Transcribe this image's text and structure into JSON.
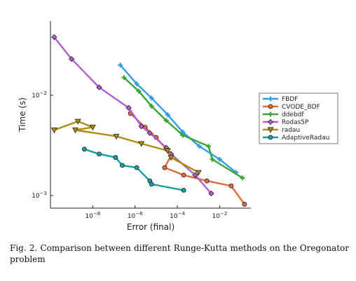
{
  "caption": "Fig. 2.  Comparison between different Runge-Kutta methods on the Oregonator problem",
  "chart_data": {
    "type": "line",
    "title": "",
    "xlabel": "Error (final)",
    "ylabel": "Time (s)",
    "xscale": "log",
    "yscale": "log",
    "xlim": [
      1e-10,
      0.3
    ],
    "ylim": [
      0.00075,
      0.055
    ],
    "xticks": [
      {
        "value": 1e-08,
        "label": "10^-8"
      },
      {
        "value": 1e-06,
        "label": "10^-6"
      },
      {
        "value": 0.0001,
        "label": "10^-4"
      },
      {
        "value": 0.01,
        "label": "10^-2"
      }
    ],
    "yticks": [
      {
        "value": 0.001,
        "label": "10^-3"
      },
      {
        "value": 0.01,
        "label": "10^-2"
      }
    ],
    "grid": false,
    "legend_position": "right",
    "series": [
      {
        "name": "FBDF",
        "color": "#2f9fe8",
        "marker": "cross",
        "x": [
          2e-07,
          1.2e-06,
          6e-06,
          3.5e-05,
          0.00018,
          0.0011,
          0.01,
          0.06
        ],
        "y": [
          0.02,
          0.013,
          0.0094,
          0.0064,
          0.0043,
          0.0031,
          0.0023,
          0.0017
        ]
      },
      {
        "name": "CVODE_BDF",
        "color": "#e06b3a",
        "marker": "circle",
        "x": [
          6e-07,
          3e-06,
          1e-05,
          3e-05,
          5e-05,
          2.5e-05,
          0.0002,
          0.0025,
          0.035,
          0.15
        ],
        "y": [
          0.0066,
          0.0048,
          0.0038,
          0.0029,
          0.0025,
          0.0019,
          0.0016,
          0.0014,
          0.00125,
          0.00082
        ]
      },
      {
        "name": "ddebdf",
        "color": "#3aa43a",
        "marker": "cross",
        "x": [
          3e-07,
          1.5e-06,
          6e-06,
          3e-05,
          0.00018,
          0.003,
          0.0045,
          0.12
        ],
        "y": [
          0.015,
          0.011,
          0.0078,
          0.0056,
          0.004,
          0.0031,
          0.0023,
          0.0015
        ]
      },
      {
        "name": "Rodas5P",
        "color": "#b05fcf",
        "marker": "diamond",
        "x": [
          1.5e-10,
          1e-09,
          2e-08,
          5e-07,
          2e-06,
          5e-06,
          3e-05,
          5e-05,
          0.0007,
          0.004
        ],
        "y": [
          0.038,
          0.023,
          0.012,
          0.0075,
          0.0049,
          0.0042,
          0.003,
          0.0026,
          0.0016,
          0.00105
        ]
      },
      {
        "name": "radau",
        "color": "#b08b10",
        "marker": "triangle-down",
        "x": [
          1.5e-10,
          2e-09,
          1e-08,
          1.5e-09,
          1.3e-07,
          2e-06,
          3.5e-05,
          5e-05,
          0.001
        ],
        "y": [
          0.0045,
          0.0055,
          0.0048,
          0.0045,
          0.0039,
          0.0033,
          0.0028,
          0.0024,
          0.0017
        ]
      },
      {
        "name": "AdaptiveRadau",
        "color": "#189ea0",
        "marker": "circle",
        "x": [
          4e-09,
          2e-08,
          1.2e-07,
          2.5e-07,
          1.2e-06,
          5e-06,
          6e-06,
          0.0002
        ],
        "y": [
          0.0029,
          0.0026,
          0.0024,
          0.002,
          0.0019,
          0.0014,
          0.0013,
          0.00113
        ]
      }
    ]
  }
}
